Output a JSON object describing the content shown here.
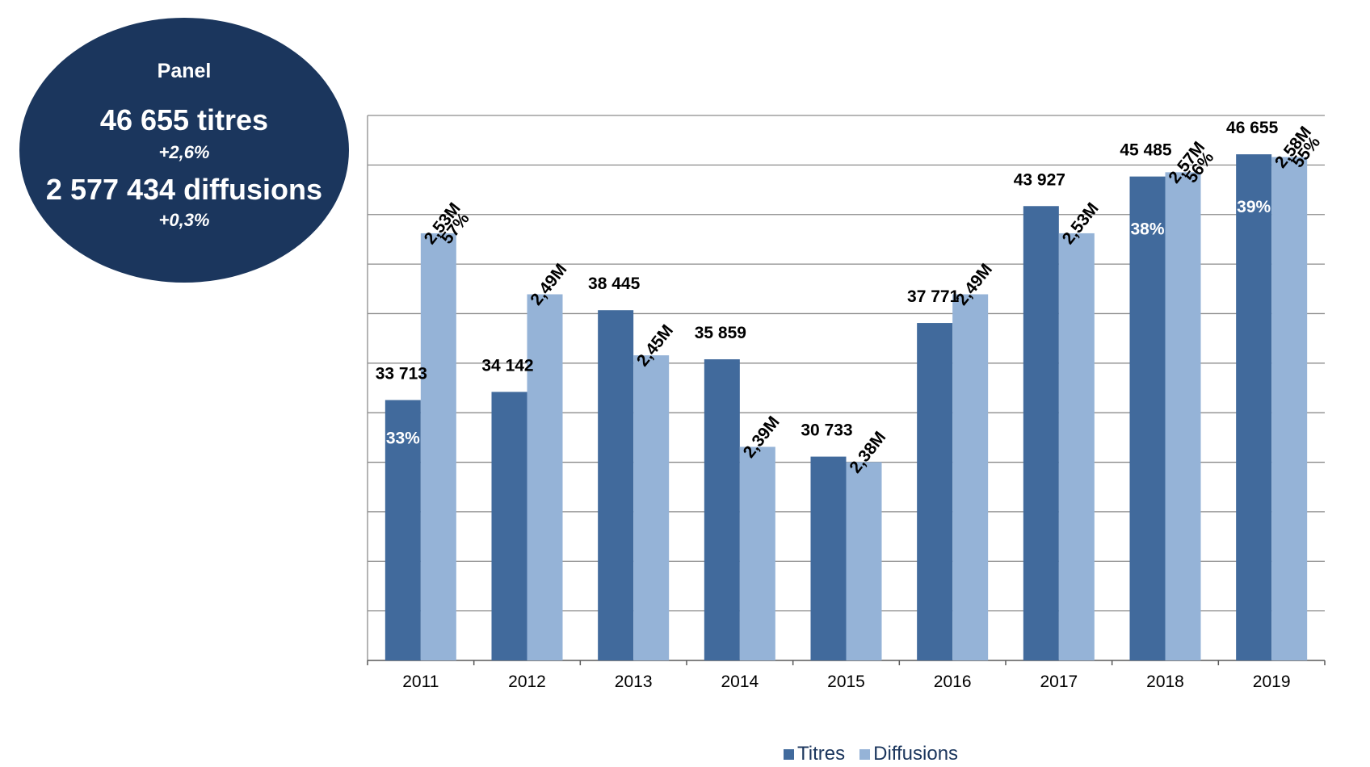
{
  "panel": {
    "title": "Panel",
    "titles_text": "46 655 titres",
    "titles_growth": "+2,6%",
    "diffusions_text": "2 577 434 diffusions",
    "diffusions_growth": "+0,3%"
  },
  "chart_data": {
    "type": "bar",
    "categories": [
      "2011",
      "2012",
      "2013",
      "2014",
      "2015",
      "2016",
      "2017",
      "2018",
      "2019"
    ],
    "grid": true,
    "legend_position": "bottom",
    "series": [
      {
        "name": "Titres",
        "color": "#416a9c",
        "values": [
          33713,
          34142,
          38445,
          35859,
          30733,
          37771,
          43927,
          45485,
          46655
        ],
        "labels": [
          "33 713",
          "34 142",
          "38 445",
          "35 859",
          "30 733",
          "37 771",
          "43 927",
          "45 485",
          "46 655"
        ]
      },
      {
        "name": "Diffusions",
        "color": "#95b3d7",
        "values": [
          2.53,
          2.49,
          2.45,
          2.39,
          2.38,
          2.49,
          2.53,
          2.57,
          2.58
        ],
        "labels": [
          "2,53M",
          "2,49M",
          "2,45M",
          "2,39M",
          "2,38M",
          "2,49M",
          "2,53M",
          "2,57M",
          "2,58M"
        ]
      }
    ],
    "share_labels": [
      {
        "year": "2011",
        "titres": "33%",
        "diffusions": "57%"
      },
      {
        "year": "2018",
        "titres": "38%",
        "diffusions": "56%"
      },
      {
        "year": "2019",
        "titres": "39%",
        "diffusions": "55%"
      }
    ]
  }
}
